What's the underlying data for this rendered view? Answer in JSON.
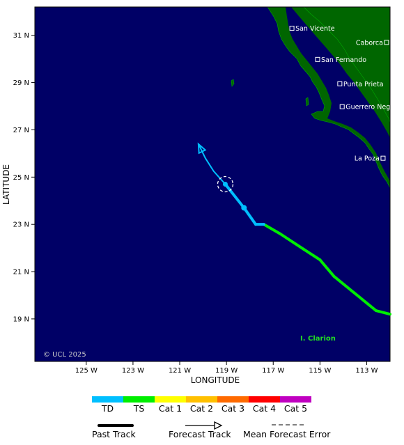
{
  "map": {
    "xlabel": "LONGITUDE",
    "ylabel": "LATITUDE",
    "lon_range": [
      -127.2,
      -112.0
    ],
    "lat_range": [
      17.2,
      32.2
    ],
    "lon_ticks": [
      {
        "value": -125,
        "label": "125 W"
      },
      {
        "value": -123,
        "label": "123 W"
      },
      {
        "value": -121,
        "label": "121 W"
      },
      {
        "value": -119,
        "label": "119 W"
      },
      {
        "value": -117,
        "label": "117 W"
      },
      {
        "value": -115,
        "label": "115 W"
      },
      {
        "value": -113,
        "label": "113 W"
      }
    ],
    "lat_ticks": [
      {
        "value": 31,
        "label": "31 N"
      },
      {
        "value": 29,
        "label": "29 N"
      },
      {
        "value": 27,
        "label": "27 N"
      },
      {
        "value": 25,
        "label": "25 N"
      },
      {
        "value": 23,
        "label": "23 N"
      },
      {
        "value": 21,
        "label": "21 N"
      },
      {
        "value": 19,
        "label": "19 N"
      }
    ],
    "copyright": "© UCL 2025",
    "island_label": "I. Clarion",
    "colors": {
      "ocean": "#000066",
      "land": "#006600",
      "island_label": "#22dd22"
    },
    "cities": [
      {
        "name": "San Vicente",
        "lon": -116.2,
        "lat": 31.3
      },
      {
        "name": "Caborca",
        "lon": -112.15,
        "lat": 30.7
      },
      {
        "name": "San Fernando",
        "lon": -115.1,
        "lat": 29.98
      },
      {
        "name": "Punta Prieta",
        "lon": -114.15,
        "lat": 28.95
      },
      {
        "name": "Guerrero Negro",
        "lon": -114.05,
        "lat": 27.98
      },
      {
        "name": "La Poza",
        "lon": -112.3,
        "lat": 25.8
      }
    ],
    "past_track": [
      {
        "lon": -112.0,
        "lat": 19.2,
        "cat": "TS"
      },
      {
        "lon": -112.6,
        "lat": 19.35,
        "cat": "TS"
      },
      {
        "lon": -114.4,
        "lat": 20.8,
        "cat": "TS"
      },
      {
        "lon": -115.0,
        "lat": 21.5,
        "cat": "TS"
      },
      {
        "lon": -115.7,
        "lat": 21.95,
        "cat": "TS"
      },
      {
        "lon": -116.7,
        "lat": 22.6,
        "cat": "TS"
      },
      {
        "lon": -117.4,
        "lat": 23.0,
        "cat": "TS"
      },
      {
        "lon": -117.75,
        "lat": 23.0,
        "cat": "TD"
      },
      {
        "lon": -118.25,
        "lat": 23.7,
        "cat": "TD"
      },
      {
        "lon": -119.05,
        "lat": 24.7,
        "cat": "TD"
      }
    ],
    "forecast_track": [
      {
        "lon": -119.05,
        "lat": 24.7
      },
      {
        "lon": -119.55,
        "lat": 25.25
      },
      {
        "lon": -119.9,
        "lat": 25.8
      },
      {
        "lon": -120.2,
        "lat": 26.4
      }
    ],
    "forecast_points": [
      {
        "lon": -118.25,
        "lat": 23.7
      }
    ],
    "current_position": {
      "lon": -119.05,
      "lat": 24.7
    }
  },
  "legend": {
    "categories": [
      {
        "label": "TD",
        "color": "#00bfff"
      },
      {
        "label": "TS",
        "color": "#00ee00"
      },
      {
        "label": "Cat 1",
        "color": "#ffff00"
      },
      {
        "label": "Cat 2",
        "color": "#ffc000"
      },
      {
        "label": "Cat 3",
        "color": "#ff6a00"
      },
      {
        "label": "Cat 4",
        "color": "#ff0000"
      },
      {
        "label": "Cat 5",
        "color": "#c000c0"
      }
    ],
    "past_track": "Past Track",
    "forecast_track": "Forecast Track",
    "mean_error": "Mean Forecast Error"
  }
}
